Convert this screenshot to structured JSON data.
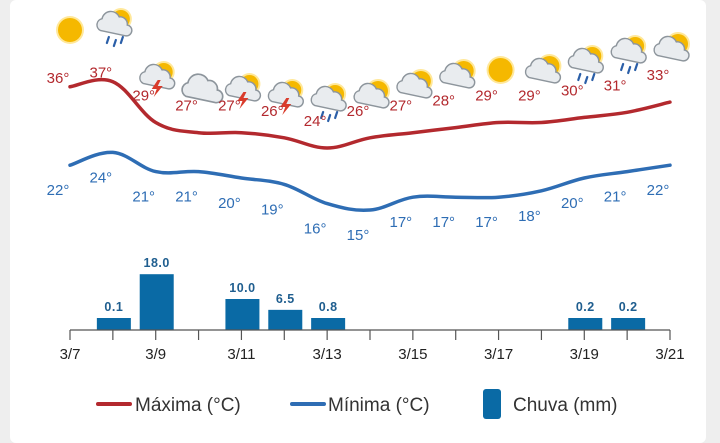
{
  "colors": {
    "max_line": "#b3292e",
    "min_line": "#2e6db4",
    "rain_bar": "#0a6aa5",
    "axis": "#555555"
  },
  "chart_data": {
    "type": "line+bar",
    "days": [
      "3/7",
      "3/8",
      "3/9",
      "3/10",
      "3/11",
      "3/12",
      "3/13",
      "3/14",
      "3/15",
      "3/16",
      "3/17",
      "3/18",
      "3/19",
      "3/20",
      "3/21"
    ],
    "x_tick_labels": [
      "3/7",
      "3/9",
      "3/11",
      "3/13",
      "3/15",
      "3/17",
      "3/19",
      "3/21"
    ],
    "weather_icons": [
      "sunny",
      "rain",
      "thunderstorm",
      "cloudy",
      "thunderstorm",
      "thunderstorm",
      "rain",
      "partly-cloudy",
      "partly-cloudy",
      "partly-cloudy",
      "sunny",
      "partly-cloudy",
      "rain",
      "rain",
      "partly-cloudy"
    ],
    "series": [
      {
        "name": "Máxima (°C)",
        "type": "line",
        "values": [
          36,
          37,
          29,
          27,
          27,
          26,
          24,
          26,
          27,
          28,
          29,
          29,
          30,
          31,
          33
        ],
        "labels": [
          "36°",
          "37°",
          "29°",
          "27°",
          "27°",
          "26°",
          "24°",
          "26°",
          "27°",
          "28°",
          "29°",
          "29°",
          "30°",
          "31°",
          "33°"
        ]
      },
      {
        "name": "Mínima (°C)",
        "type": "line",
        "values": [
          22,
          24,
          21,
          21,
          20,
          19,
          16,
          15,
          17,
          17,
          17,
          18,
          20,
          21,
          22
        ],
        "labels": [
          "22°",
          "24°",
          "21°",
          "21°",
          "20°",
          "19°",
          "16°",
          "15°",
          "17°",
          "17°",
          "17°",
          "18°",
          "20°",
          "21°",
          "22°"
        ]
      },
      {
        "name": "Chuva (mm)",
        "type": "bar",
        "values": [
          0,
          0.1,
          18.0,
          0,
          10.0,
          6.5,
          0.8,
          0,
          0,
          0,
          0,
          0,
          0.2,
          0.2,
          0
        ],
        "labels": [
          "",
          "0.1",
          "18.0",
          "",
          "10.0",
          "6.5",
          "0.8",
          "",
          "",
          "",
          "",
          "",
          "0.2",
          "0.2",
          ""
        ]
      }
    ],
    "legend": {
      "position": "bottom",
      "items": [
        "Máxima (°C)",
        "Mínima (°C)",
        "Chuva (mm)"
      ]
    }
  }
}
